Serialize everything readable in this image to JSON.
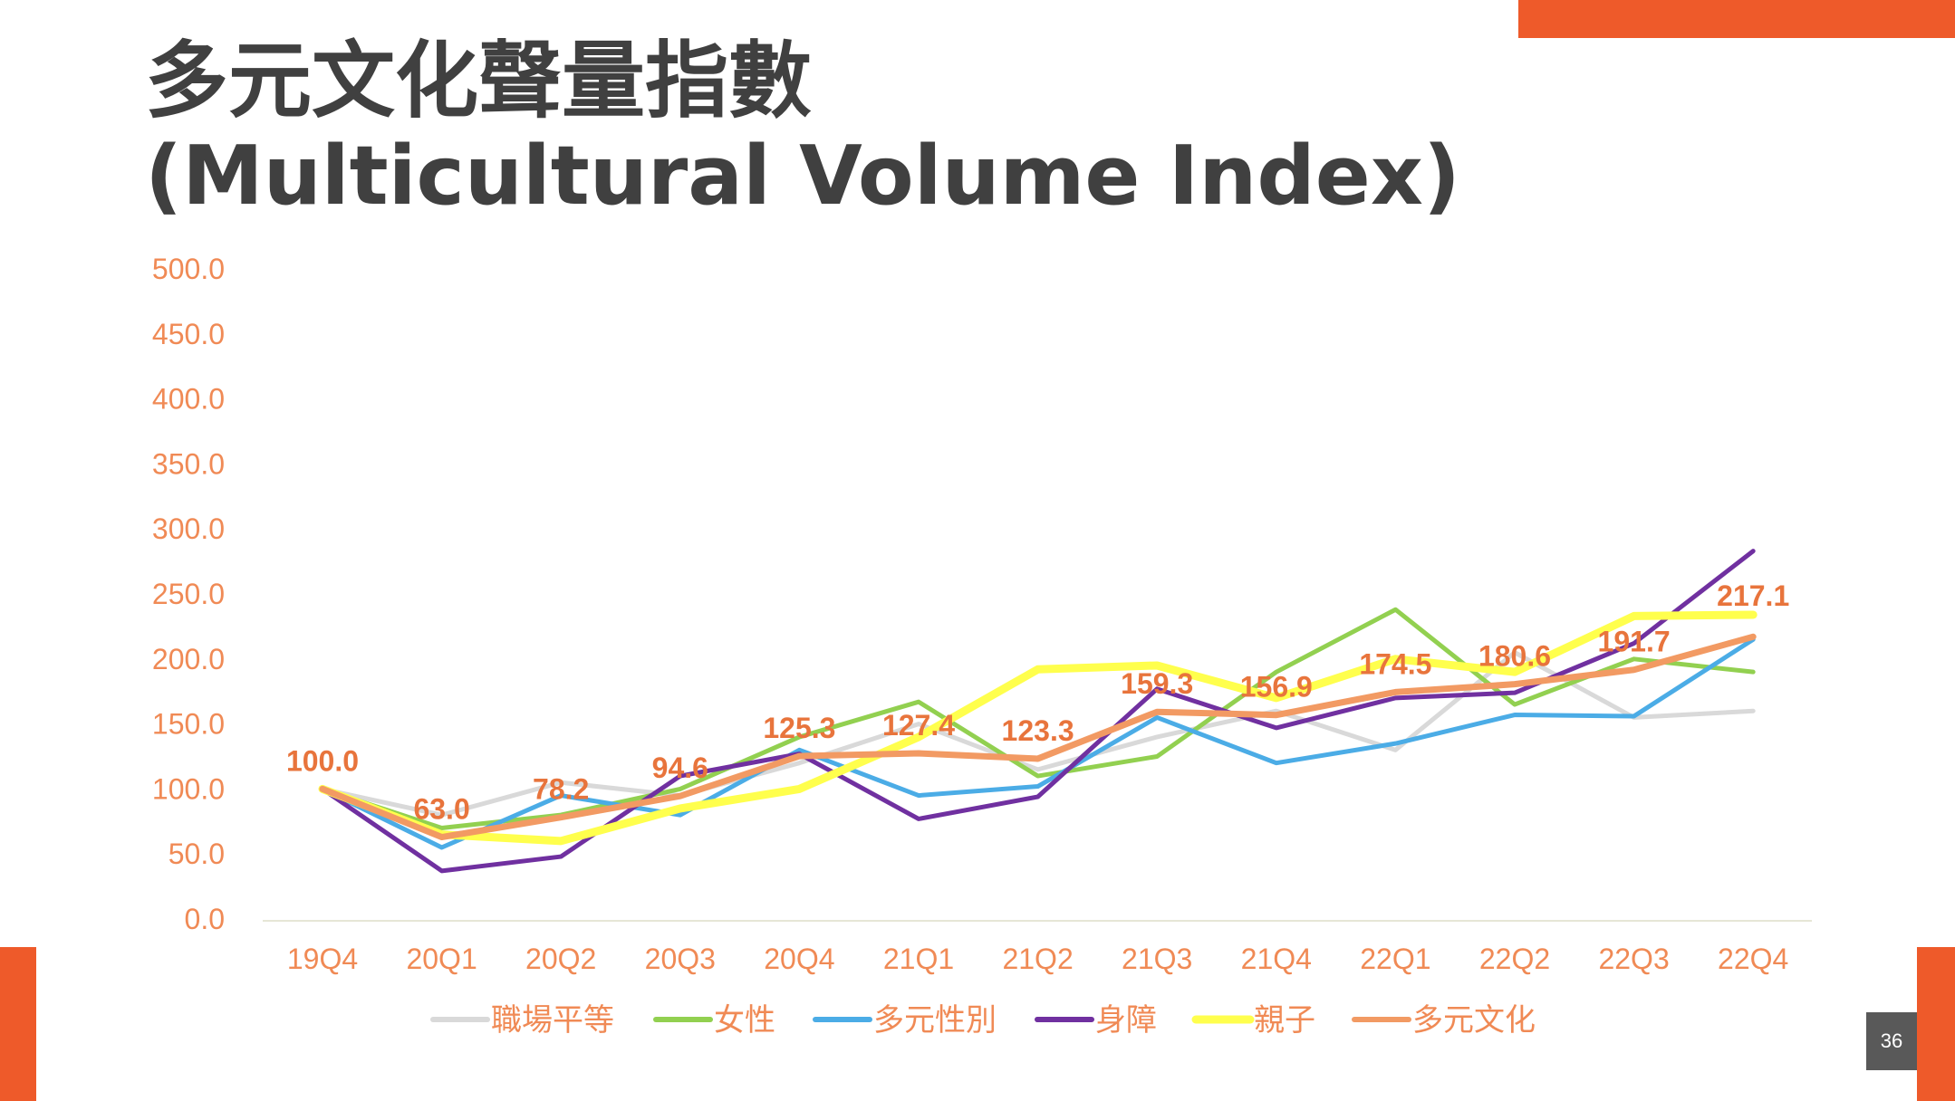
{
  "slide": {
    "title_line_1": "多元文化聲量指數",
    "title_line_2": "(Multicultural Volume Index)",
    "page_number": "36",
    "accent_color": "#EE5A2A"
  },
  "chart_data": {
    "type": "line",
    "title": "",
    "xlabel": "",
    "ylabel": "",
    "categories": [
      "19Q4",
      "20Q1",
      "20Q2",
      "20Q3",
      "20Q4",
      "21Q1",
      "21Q2",
      "21Q3",
      "21Q4",
      "22Q1",
      "22Q2",
      "22Q3",
      "22Q4"
    ],
    "ylim": [
      0,
      500
    ],
    "yticks": [
      "0.0",
      "50.0",
      "100.0",
      "150.0",
      "200.0",
      "250.0",
      "300.0",
      "350.0",
      "400.0",
      "450.0",
      "500.0"
    ],
    "grid": false,
    "legend_position": "bottom",
    "axis_label_color": "#F08A55",
    "data_label_color": "#E8743C",
    "data_label_series": "多元文化",
    "series": [
      {
        "name": "職場平等",
        "color": "#D9D9D9",
        "values": [
          100,
          80,
          105,
          95,
          120,
          150,
          115,
          140,
          160,
          130,
          205,
          155,
          160
        ]
      },
      {
        "name": "女性",
        "color": "#92D050",
        "values": [
          100,
          70,
          80,
          100,
          140,
          167,
          110,
          125,
          190,
          238,
          165,
          200,
          190
        ]
      },
      {
        "name": "多元性別",
        "color": "#4BACE6",
        "values": [
          100,
          55,
          95,
          80,
          130,
          95,
          102,
          155,
          120,
          135,
          157,
          156,
          215
        ]
      },
      {
        "name": "身障",
        "color": "#7030A0",
        "values": [
          100,
          37,
          48,
          110,
          127,
          77,
          94,
          177,
          147,
          170,
          174,
          212,
          283
        ]
      },
      {
        "name": "親子",
        "color": "#FFFF4D",
        "values": [
          100,
          65,
          60,
          85,
          100,
          140,
          192,
          195,
          170,
          200,
          190,
          233,
          234
        ]
      },
      {
        "name": "多元文化",
        "color": "#F29A63",
        "values": [
          100,
          63.0,
          78.2,
          94.6,
          125.3,
          127.4,
          123.3,
          159.3,
          156.9,
          174.5,
          180.6,
          191.7,
          217.1
        ]
      }
    ],
    "data_labels": [
      "100.0",
      "63.0",
      "78.2",
      "94.6",
      "125.3",
      "127.4",
      "123.3",
      "159.3",
      "156.9",
      "174.5",
      "180.6",
      "191.7",
      "217.1"
    ]
  }
}
